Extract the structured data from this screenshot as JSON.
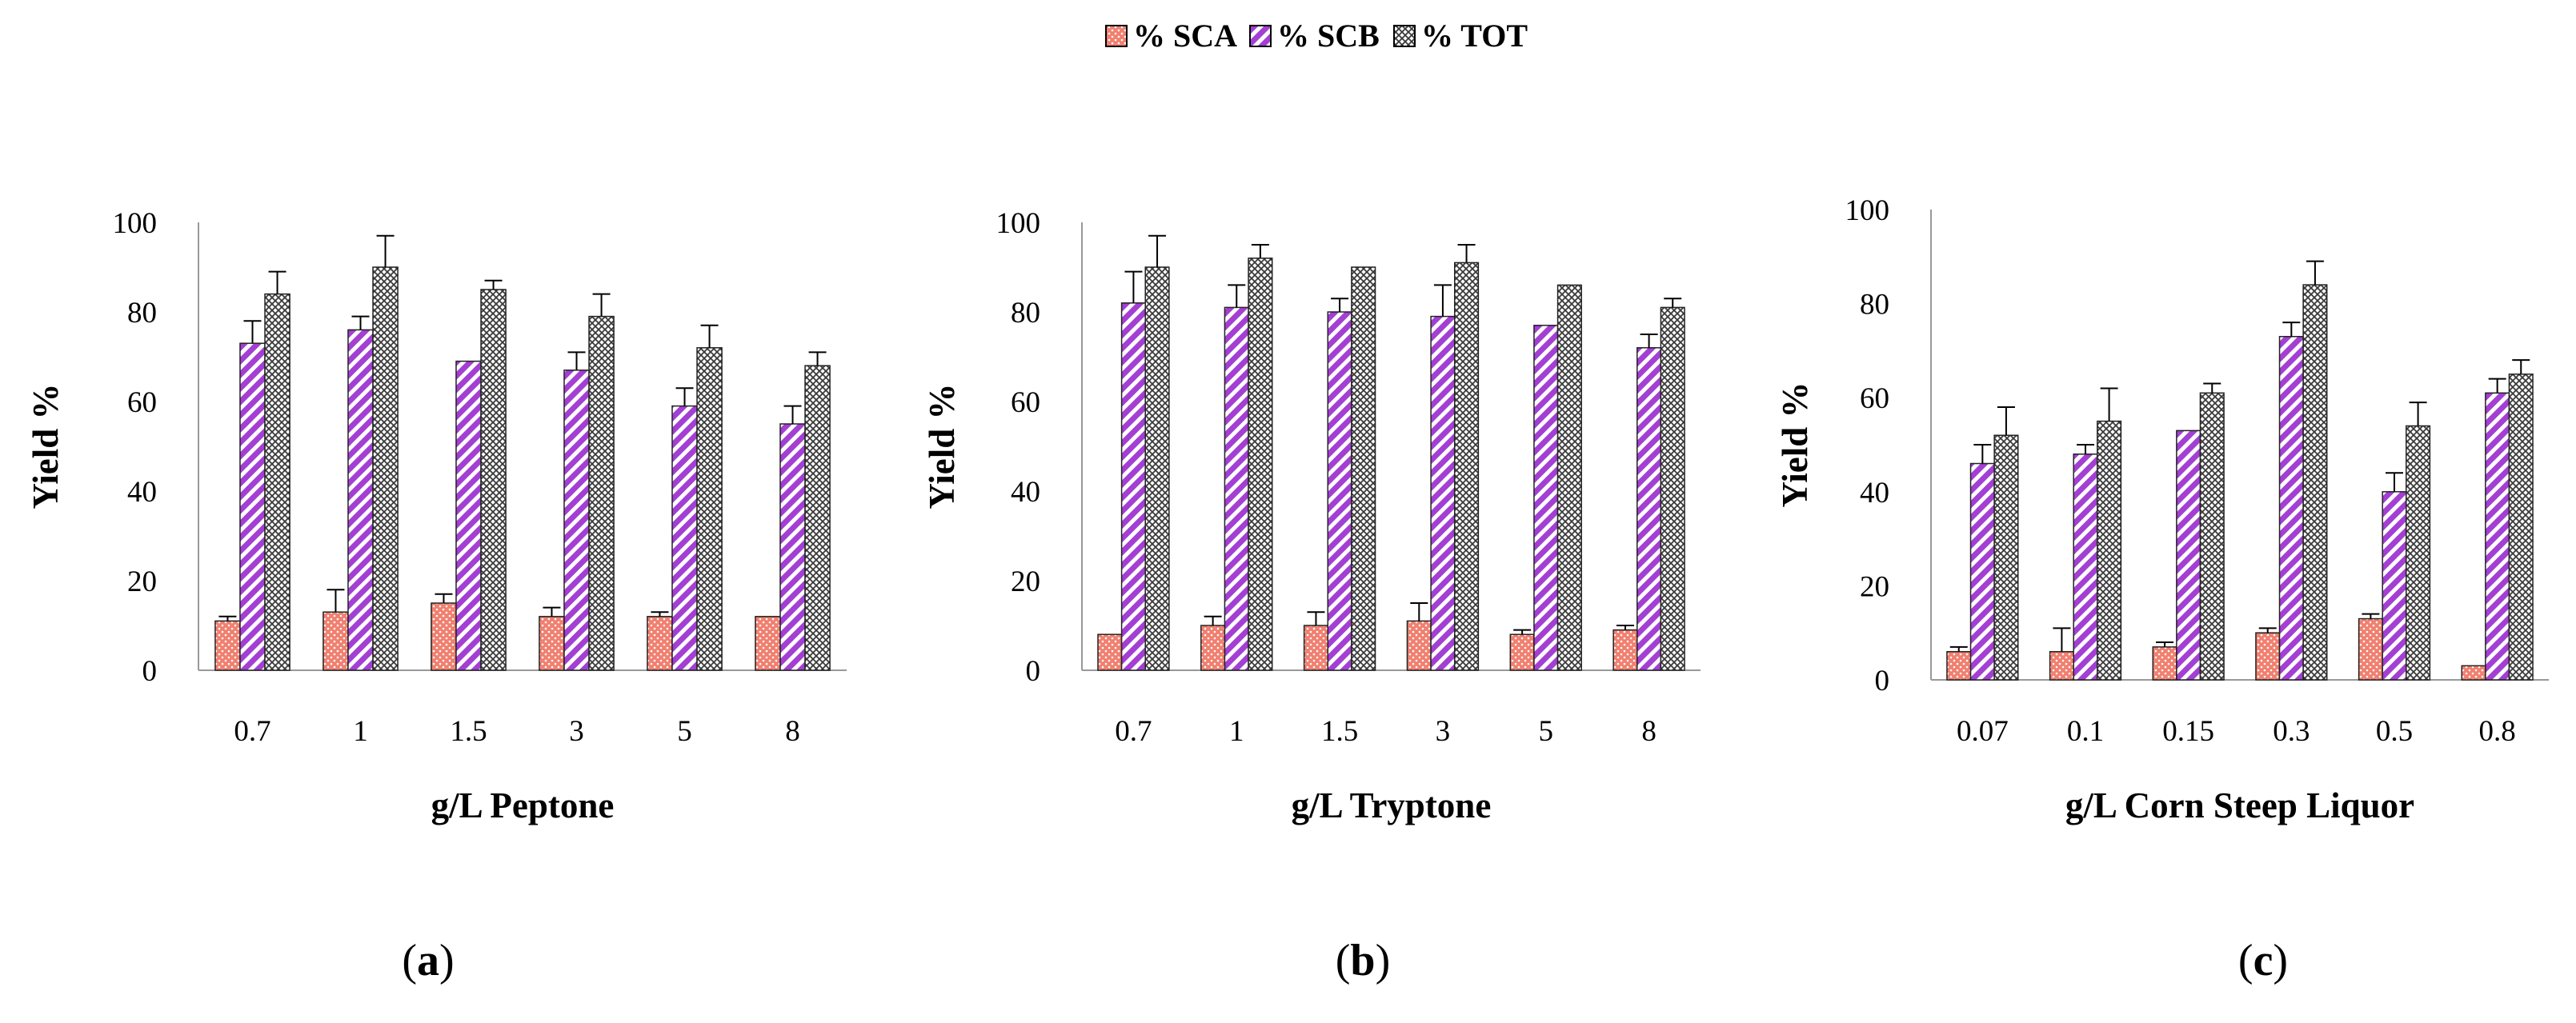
{
  "legend": [
    {
      "key": "sca",
      "label": "% SCA",
      "pattern": "dots",
      "color": "#f08070"
    },
    {
      "key": "scb",
      "label": "% SCB",
      "pattern": "hatch",
      "color": "#a33fd3"
    },
    {
      "key": "tot",
      "label": "% TOT",
      "pattern": "crosshatch",
      "color": "#3a3a3a"
    }
  ],
  "chart_data": [
    {
      "type": "bar",
      "panel_label_prefix": "(",
      "panel_label_letter": "a",
      "panel_label_suffix": ")",
      "xlabel": "g/L Peptone",
      "ylabel": "Yield %",
      "ylim": [
        0,
        100
      ],
      "yticks": [
        "0",
        "20",
        "40",
        "60",
        "80",
        "100"
      ],
      "categories": [
        "0.7",
        "1",
        "1.5",
        "3",
        "5",
        "8"
      ],
      "series": [
        {
          "name": "% SCA",
          "values": [
            11,
            13,
            15,
            12,
            12,
            12
          ],
          "errors": [
            1,
            5,
            2,
            2,
            1,
            0
          ]
        },
        {
          "name": "% SCB",
          "values": [
            73,
            76,
            69,
            67,
            59,
            55
          ],
          "errors": [
            5,
            3,
            0,
            4,
            4,
            4
          ]
        },
        {
          "name": "% TOT",
          "values": [
            84,
            90,
            85,
            79,
            72,
            68
          ],
          "errors": [
            5,
            7,
            2,
            5,
            5,
            3
          ]
        }
      ]
    },
    {
      "type": "bar",
      "panel_label_prefix": "(",
      "panel_label_letter": "b",
      "panel_label_suffix": ")",
      "xlabel": "g/L Tryptone",
      "ylabel": "Yield  %",
      "ylim": [
        0,
        100
      ],
      "yticks": [
        "0",
        "20",
        "40",
        "60",
        "80",
        "100"
      ],
      "categories": [
        "0.7",
        "1",
        "1.5",
        "3",
        "5",
        "8"
      ],
      "series": [
        {
          "name": "% SCA",
          "values": [
            8,
            10,
            10,
            11,
            8,
            9
          ],
          "errors": [
            0,
            2,
            3,
            4,
            1,
            1
          ]
        },
        {
          "name": "% SCB",
          "values": [
            82,
            81,
            80,
            79,
            77,
            72
          ],
          "errors": [
            7,
            5,
            3,
            7,
            0,
            3
          ]
        },
        {
          "name": "% TOT",
          "values": [
            90,
            92,
            90,
            91,
            86,
            81
          ],
          "errors": [
            7,
            3,
            0,
            4,
            0,
            2
          ]
        }
      ]
    },
    {
      "type": "bar",
      "panel_label_prefix": "(",
      "panel_label_letter": "c",
      "panel_label_suffix": ")",
      "xlabel": "g/L Corn Steep Liquor",
      "ylabel": "Yield  %",
      "ylim": [
        0,
        100
      ],
      "yticks": [
        "0",
        "20",
        "40",
        "60",
        "80",
        "100"
      ],
      "categories": [
        "0.07",
        "0.1",
        "0.15",
        "0.3",
        "0.5",
        "0.8"
      ],
      "series": [
        {
          "name": "% SCA",
          "values": [
            6,
            6,
            7,
            10,
            13,
            3
          ],
          "errors": [
            1,
            5,
            1,
            1,
            1,
            0
          ]
        },
        {
          "name": "% SCB",
          "values": [
            46,
            48,
            53,
            73,
            40,
            61
          ],
          "errors": [
            4,
            2,
            0,
            3,
            4,
            3
          ]
        },
        {
          "name": "% TOT",
          "values": [
            52,
            55,
            61,
            84,
            54,
            65
          ],
          "errors": [
            6,
            7,
            2,
            5,
            5,
            3
          ]
        }
      ]
    }
  ]
}
